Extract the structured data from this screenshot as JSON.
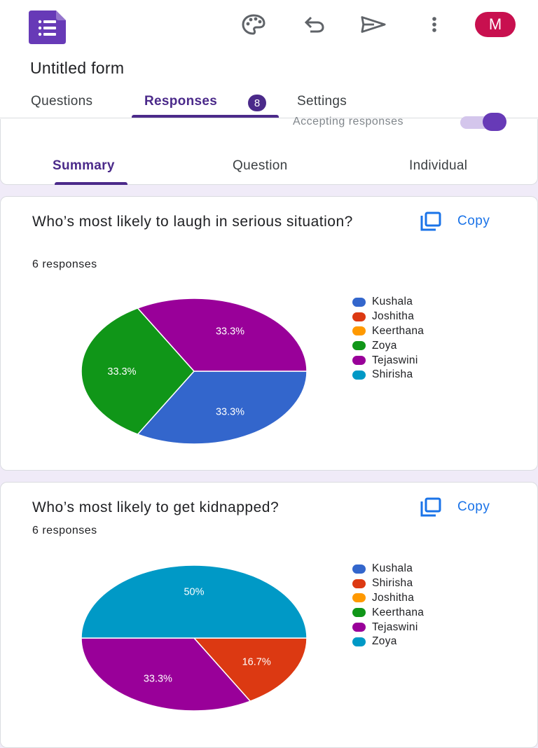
{
  "header": {
    "form_title": "Untitled form",
    "avatar_initial": "M",
    "icons": [
      "palette-icon",
      "undo-icon",
      "send-icon",
      "more-vert-icon"
    ]
  },
  "tabs": [
    {
      "label": "Questions",
      "active": false
    },
    {
      "label": "Responses",
      "active": true,
      "badge": "8"
    },
    {
      "label": "Settings",
      "active": false
    }
  ],
  "summary_bar": {
    "accepting_label": "Accepting responses",
    "accepting": true,
    "subtabs": [
      {
        "label": "Summary",
        "active": true
      },
      {
        "label": "Question",
        "active": false
      },
      {
        "label": "Individual",
        "active": false
      }
    ]
  },
  "questions": [
    {
      "title": "Who’s most likely to laugh in serious situation?",
      "responses_text": "6 responses",
      "copy_label": "Copy",
      "legend": [
        {
          "name": "Kushala",
          "color": "#3366cc"
        },
        {
          "name": "Joshitha",
          "color": "#dc3912"
        },
        {
          "name": "Keerthana",
          "color": "#ff9900"
        },
        {
          "name": "Zoya",
          "color": "#109618"
        },
        {
          "name": "Tejaswini",
          "color": "#990099"
        },
        {
          "name": "Shirisha",
          "color": "#0099c6"
        }
      ]
    },
    {
      "title": "Who’s  most likely to get kidnapped?",
      "responses_text": "6 responses",
      "copy_label": "Copy",
      "legend": [
        {
          "name": "Kushala",
          "color": "#3366cc"
        },
        {
          "name": "Shirisha",
          "color": "#dc3912"
        },
        {
          "name": "Joshitha",
          "color": "#ff9900"
        },
        {
          "name": "Keerthana",
          "color": "#109618"
        },
        {
          "name": "Tejaswini",
          "color": "#990099"
        },
        {
          "name": "Zoya",
          "color": "#0099c6"
        }
      ]
    }
  ],
  "chart_data": [
    {
      "type": "pie",
      "start_angle_deg": 0,
      "slices": [
        {
          "label": "Kushala",
          "value": 33.3,
          "display": "33.3%",
          "color": "#3366cc"
        },
        {
          "label": "Zoya",
          "value": 33.3,
          "display": "33.3%",
          "color": "#109618"
        },
        {
          "label": "Tejaswini",
          "value": 33.3,
          "display": "33.3%",
          "color": "#990099"
        }
      ]
    },
    {
      "type": "pie",
      "start_angle_deg": 0,
      "slices": [
        {
          "label": "Shirisha",
          "value": 16.7,
          "display": "16.7%",
          "color": "#dc3912"
        },
        {
          "label": "Tejaswini",
          "value": 33.3,
          "display": "33.3%",
          "color": "#990099"
        },
        {
          "label": "Zoya",
          "value": 50,
          "display": "50%",
          "color": "#0099c6"
        }
      ]
    }
  ]
}
